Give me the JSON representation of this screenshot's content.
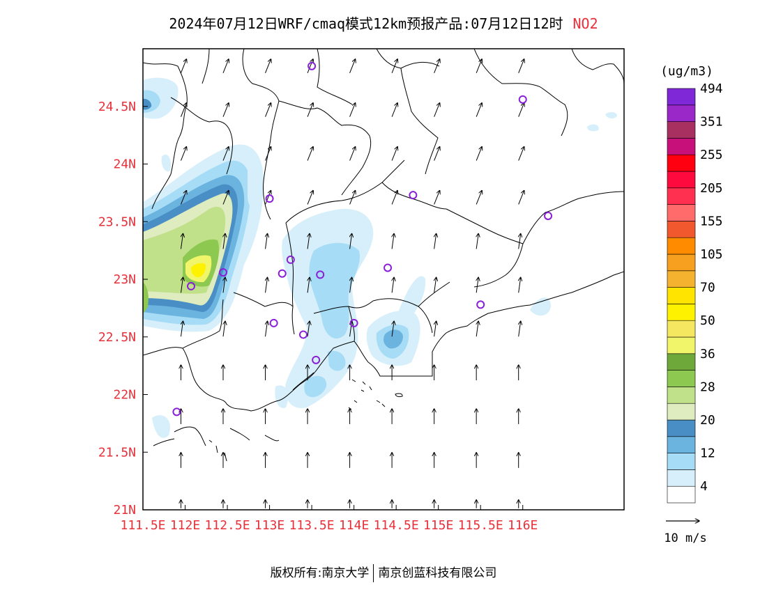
{
  "title": {
    "prefix": "2024年07月12日WRF/cmaq模式12km预报产品:07月12日12时",
    "species": "NO2"
  },
  "colors": {
    "axis_label": "#e8303a",
    "title_species": "#e8303a"
  },
  "map": {
    "lon_range": [
      111.5,
      117.2
    ],
    "lat_range": [
      21.0,
      25.0
    ],
    "x_ticks": [
      {
        "value": 111.5,
        "label": "111.5E"
      },
      {
        "value": 112.0,
        "label": "112E"
      },
      {
        "value": 112.5,
        "label": "112.5E"
      },
      {
        "value": 113.0,
        "label": "113E"
      },
      {
        "value": 113.5,
        "label": "113.5E"
      },
      {
        "value": 114.0,
        "label": "114E"
      },
      {
        "value": 114.5,
        "label": "114.5E"
      },
      {
        "value": 115.0,
        "label": "115E"
      },
      {
        "value": 115.5,
        "label": "115.5E"
      },
      {
        "value": 116.0,
        "label": "116E"
      }
    ],
    "y_ticks": [
      {
        "value": 21.0,
        "label": "21N"
      },
      {
        "value": 21.5,
        "label": "21.5N"
      },
      {
        "value": 22.0,
        "label": "22N"
      },
      {
        "value": 22.5,
        "label": "22.5N"
      },
      {
        "value": 23.0,
        "label": "23N"
      },
      {
        "value": 23.5,
        "label": "23.5N"
      },
      {
        "value": 24.0,
        "label": "24N"
      },
      {
        "value": 24.5,
        "label": "24.5N"
      }
    ],
    "wind_direction": "from SSW toward NNE",
    "stations": [
      {
        "lon": 113.5,
        "lat": 24.85
      },
      {
        "lon": 116.0,
        "lat": 24.56
      },
      {
        "lon": 113.0,
        "lat": 23.7
      },
      {
        "lon": 114.7,
        "lat": 23.73
      },
      {
        "lon": 116.3,
        "lat": 23.55
      },
      {
        "lon": 113.25,
        "lat": 23.17
      },
      {
        "lon": 112.45,
        "lat": 23.06
      },
      {
        "lon": 113.15,
        "lat": 23.05
      },
      {
        "lon": 113.6,
        "lat": 23.04
      },
      {
        "lon": 114.4,
        "lat": 23.1
      },
      {
        "lon": 112.07,
        "lat": 22.94
      },
      {
        "lon": 115.5,
        "lat": 22.78
      },
      {
        "lon": 113.05,
        "lat": 22.62
      },
      {
        "lon": 113.4,
        "lat": 22.52
      },
      {
        "lon": 114.0,
        "lat": 22.62
      },
      {
        "lon": 113.55,
        "lat": 22.3
      },
      {
        "lon": 111.9,
        "lat": 21.85
      }
    ]
  },
  "legend": {
    "unit": "(ug/m3)",
    "colors": [
      "#ffffff",
      "#d6effa",
      "#a6dcf5",
      "#6cb4e0",
      "#4a8ec6",
      "#dfecc0",
      "#c0e08a",
      "#8dc850",
      "#6ea83a",
      "#f0f56a",
      "#f5e860",
      "#fff200",
      "#ffe400",
      "#f5b22e",
      "#f7a020",
      "#ff8b00",
      "#f2582e",
      "#ff6a6a",
      "#ff3050",
      "#ff0a3e",
      "#ff0010",
      "#c8107a",
      "#a83060",
      "#9a28c8",
      "#7f28d8"
    ],
    "labels": [
      {
        "boundary": 1,
        "text": "4"
      },
      {
        "boundary": 3,
        "text": "12"
      },
      {
        "boundary": 5,
        "text": "20"
      },
      {
        "boundary": 7,
        "text": "28"
      },
      {
        "boundary": 9,
        "text": "36"
      },
      {
        "boundary": 11,
        "text": "50"
      },
      {
        "boundary": 13,
        "text": "70"
      },
      {
        "boundary": 15,
        "text": "105"
      },
      {
        "boundary": 17,
        "text": "155"
      },
      {
        "boundary": 19,
        "text": "205"
      },
      {
        "boundary": 21,
        "text": "255"
      },
      {
        "boundary": 23,
        "text": "351"
      },
      {
        "boundary": 25,
        "text": "494"
      }
    ],
    "vector_ref": "10 m/s"
  },
  "footer": {
    "left": "版权所有:南京大学",
    "right": "南京创蓝科技有限公司"
  }
}
